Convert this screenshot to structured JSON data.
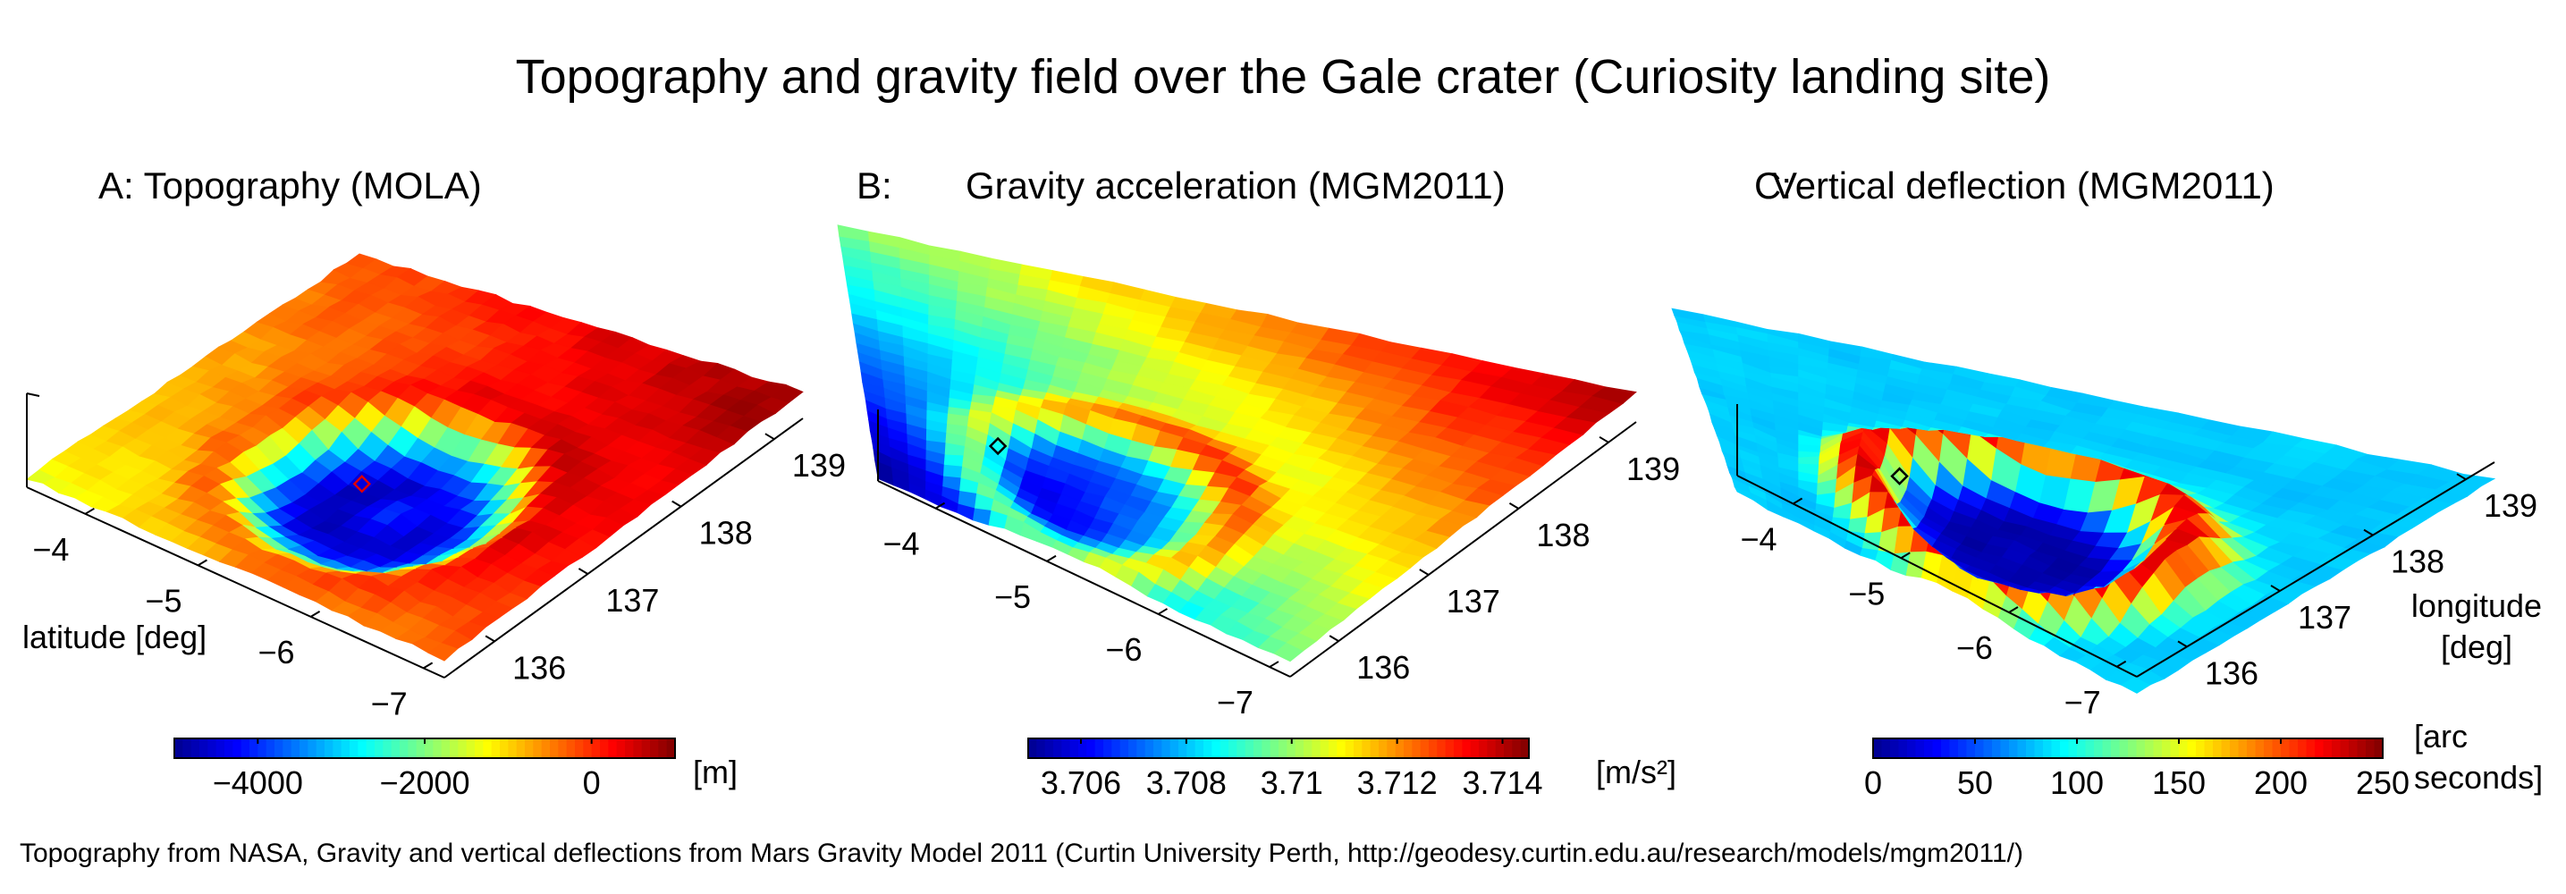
{
  "title": "Topography and gravity field over the Gale crater (Curiosity landing site)",
  "caption": "Topography from NASA, Gravity and vertical deflections from Mars Gravity Model 2011 (Curtin University Perth, http://geodesy.curtin.edu.au/research/models/mgm2011/)",
  "colormap": [
    "#00008f",
    "#0000ff",
    "#0080ff",
    "#00ffff",
    "#80ff80",
    "#ffff00",
    "#ff8000",
    "#ff0000",
    "#800000"
  ],
  "marker_color": {
    "A": "#e00000",
    "B": "#000000",
    "C": "#000000"
  },
  "chart_data": [
    {
      "type": "surface",
      "panel_letter": "A:",
      "title": "A: Topography (MOLA)",
      "latitude_ticks": [
        -4,
        -5,
        -6,
        -7
      ],
      "longitude_ticks": [
        136,
        137,
        138,
        139
      ],
      "xlabel": "latitude [deg]",
      "ylabel": "",
      "colorbar": {
        "ticks": [
          -4000,
          -2000,
          0
        ],
        "range": [
          -5000,
          1000
        ],
        "unit": "[m]"
      },
      "surface": {
        "background": 0.2,
        "ramp": 0.35,
        "rim_radius": 0.3,
        "rim": 0.15,
        "bowl": -0.7,
        "peak": 0.15,
        "noise": 0.08
      }
    },
    {
      "type": "surface",
      "panel_letter": "B:",
      "title": "Gravity acceleration (MGM2011)",
      "latitude_ticks": [
        -4,
        -5,
        -6,
        -7
      ],
      "longitude_ticks": [
        136,
        137,
        138,
        139
      ],
      "xlabel": "",
      "ylabel": "",
      "colorbar": {
        "ticks": [
          3.706,
          3.708,
          3.71,
          3.712,
          3.714
        ],
        "range": [
          3.705,
          3.7145
        ],
        "unit": "[m/s²]"
      },
      "surface": {
        "background": 0.05,
        "ramp": 0.55,
        "rim_radius": 0.25,
        "rim": 0.2,
        "bowl": -0.1,
        "peak": 0.0,
        "noise": 0.05
      }
    },
    {
      "type": "surface",
      "panel_letter": "C:",
      "title": "Vertical deflection (MGM2011)",
      "latitude_ticks": [
        -4,
        -5,
        -6,
        -7
      ],
      "longitude_ticks": [
        136,
        137,
        138,
        139
      ],
      "xlabel": "",
      "ylabel": "longitude [deg]",
      "colorbar": {
        "ticks": [
          0,
          50,
          100,
          150,
          200,
          250
        ],
        "range": [
          0,
          250
        ],
        "unit": "[arc seconds]"
      },
      "surface": {
        "background": -0.35,
        "ramp": 0.0,
        "rim_radius": 0.28,
        "rim": 0.9,
        "bowl": -0.4,
        "peak": 0.05,
        "noise": 0.07
      }
    }
  ]
}
